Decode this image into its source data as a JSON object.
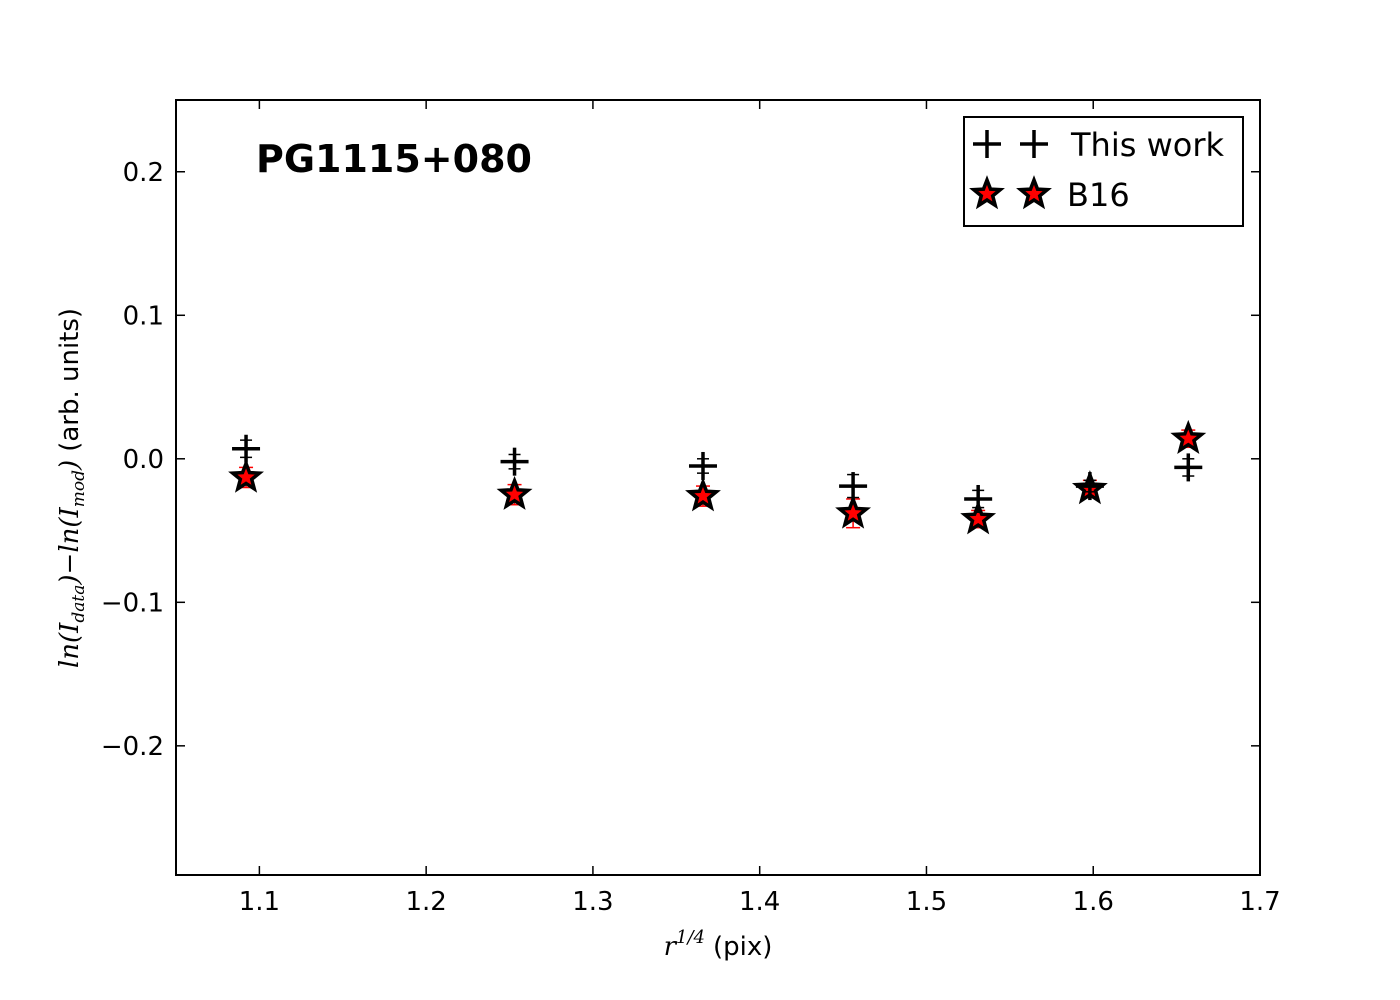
{
  "chart_data": {
    "type": "scatter",
    "title": "PG1115+080",
    "xlabel": "r^{1/4} (pix)",
    "xlabel_parts": {
      "base": "r",
      "exponent": "1/4",
      "unit": "(pix)"
    },
    "ylabel": "ln(I_data)−ln(I_mod) (arb. units)",
    "ylabel_parts": {
      "ln": "ln",
      "open1": "(I",
      "sub1": "data",
      "close1": ")−",
      "ln2": "ln",
      "open2": "(I",
      "sub2": "mod",
      "close2": ")",
      "unit": "(arb. units)"
    },
    "xlim": [
      1.05,
      1.7
    ],
    "ylim": [
      -0.29,
      0.25
    ],
    "xticks": [
      1.1,
      1.2,
      1.3,
      1.4,
      1.5,
      1.6,
      1.7
    ],
    "xtick_labels": [
      "1.1",
      "1.2",
      "1.3",
      "1.4",
      "1.5",
      "1.6",
      "1.7"
    ],
    "yticks": [
      0.2,
      0.1,
      0.0,
      -0.1,
      -0.2
    ],
    "ytick_labels": [
      "0.2",
      "0.1",
      "0.0",
      "−0.1",
      "−0.2"
    ],
    "grid": false,
    "legend_position": "top-right",
    "series": [
      {
        "name": "This work",
        "marker": "plus",
        "color": "#000000",
        "x": [
          1.092,
          1.253,
          1.366,
          1.456,
          1.531,
          1.598,
          1.657
        ],
        "y": [
          0.007,
          -0.002,
          -0.005,
          -0.019,
          -0.028,
          -0.019,
          -0.006
        ],
        "yerr": [
          0.006,
          0.005,
          0.005,
          0.008,
          0.006,
          0.004,
          0.006
        ]
      },
      {
        "name": "B16",
        "marker": "star",
        "color": "#ff0000",
        "edge_color": "#000000",
        "x": [
          1.092,
          1.253,
          1.366,
          1.456,
          1.531,
          1.598,
          1.657
        ],
        "y": [
          -0.013,
          -0.025,
          -0.026,
          -0.038,
          -0.042,
          -0.021,
          0.014
        ],
        "yerr": [
          0.007,
          0.007,
          0.007,
          0.01,
          0.006,
          0.006,
          0.006
        ]
      }
    ]
  }
}
